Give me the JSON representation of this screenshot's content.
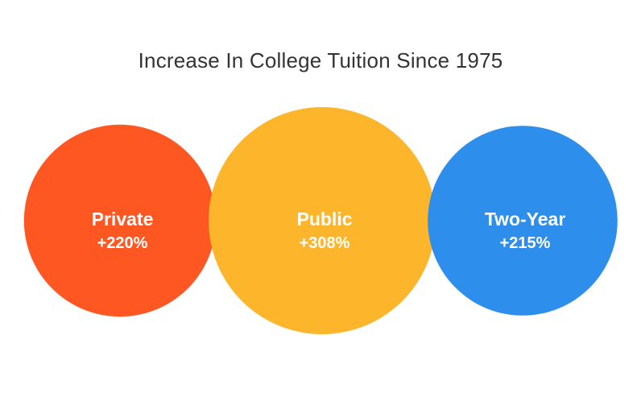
{
  "chart_data": {
    "type": "bubble",
    "title": "Increase In College Tuition Since 1975",
    "categories": [
      "Private",
      "Public",
      "Two-Year"
    ],
    "values": [
      220,
      308,
      215
    ],
    "value_labels": [
      "+220%",
      "+308%",
      "+215%"
    ],
    "unit": "%",
    "colors": [
      "#FF5722",
      "#FDB62B",
      "#2D8EEB"
    ],
    "legend": "none",
    "grid": false
  }
}
